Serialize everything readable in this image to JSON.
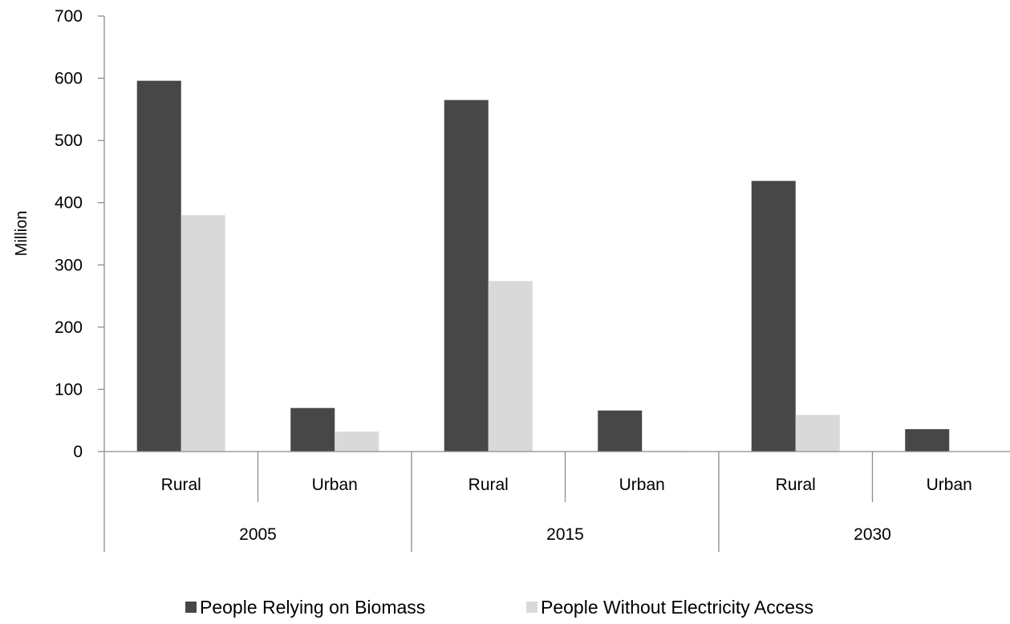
{
  "chart_data": {
    "type": "bar",
    "title": "",
    "xlabel": "",
    "ylabel": "Million",
    "ylim": [
      0,
      700
    ],
    "yticks": [
      0,
      100,
      200,
      300,
      400,
      500,
      600,
      700
    ],
    "grid": false,
    "legend_position": "bottom",
    "groups": [
      {
        "label": "2005",
        "categories": [
          "Rural",
          "Urban"
        ]
      },
      {
        "label": "2015",
        "categories": [
          "Rural",
          "Urban"
        ]
      },
      {
        "label": "2030",
        "categories": [
          "Rural",
          "Urban"
        ]
      }
    ],
    "categories": [
      "Rural",
      "Urban",
      "Rural",
      "Urban",
      "Rural",
      "Urban"
    ],
    "series": [
      {
        "name": "People Relying on Biomass",
        "color": "#474747",
        "values": [
          596,
          70,
          565,
          66,
          435,
          36
        ]
      },
      {
        "name": "People Without Electricity Access",
        "color": "#d9d9d9",
        "values": [
          380,
          32,
          274,
          1,
          59,
          0
        ]
      }
    ]
  }
}
